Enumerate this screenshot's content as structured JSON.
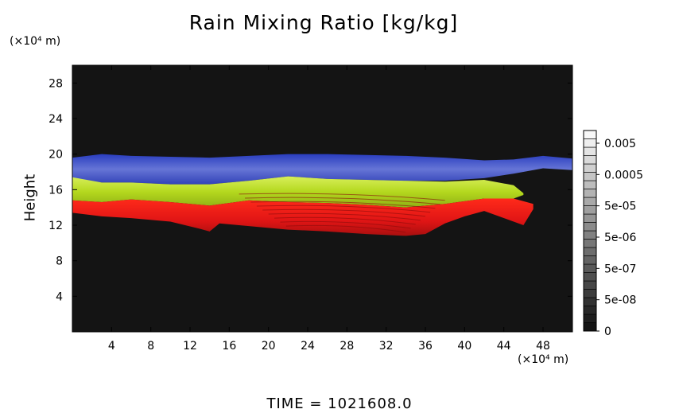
{
  "title": "Rain Mixing Ratio [kg/kg]",
  "footer": "TIME = 1021608.0",
  "chart_data": {
    "type": "heatmap",
    "title": "Rain Mixing Ratio [kg/kg]",
    "ylabel": "Height",
    "y_unit": "(×10⁴ m)",
    "x_unit": "(×10⁴ m)",
    "xlim": [
      0,
      51
    ],
    "ylim": [
      0,
      30
    ],
    "x_ticks": [
      "4",
      "8",
      "12",
      "16",
      "20",
      "24",
      "28",
      "32",
      "36",
      "40",
      "44",
      "48"
    ],
    "y_ticks": [
      "4",
      "8",
      "12",
      "16",
      "20",
      "24",
      "28"
    ],
    "colorbar": {
      "labels": [
        "0.005",
        "0.0005",
        "5e-05",
        "5e-06",
        "5e-07",
        "5e-08",
        "0"
      ]
    },
    "colors": {
      "background": "#141414",
      "top_layer": "#3a4fd0",
      "middle_layer": "#b8dd1f",
      "bottom_layer": "#e01818"
    }
  }
}
